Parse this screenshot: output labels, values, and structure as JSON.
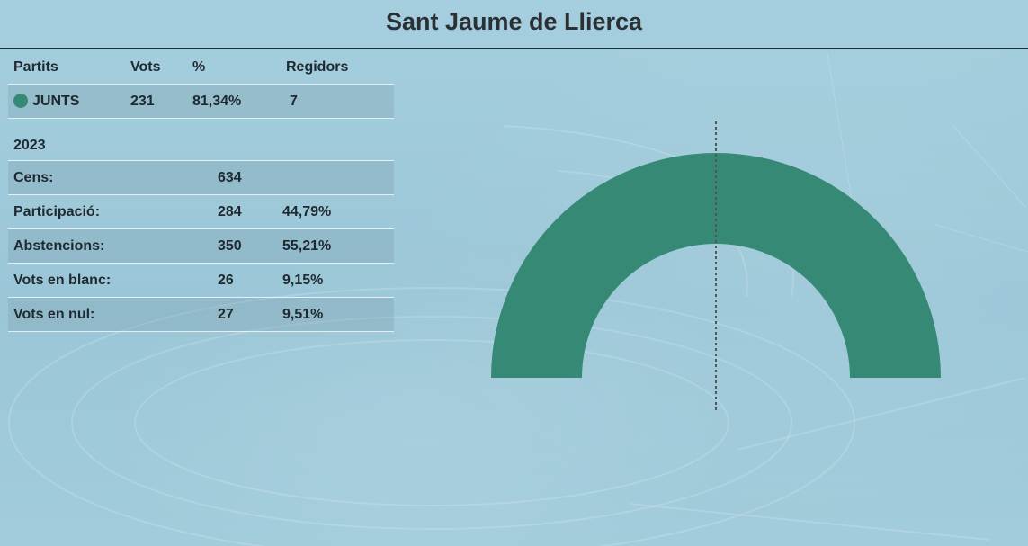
{
  "title": "Sant Jaume de Llierca",
  "results_table": {
    "headers": {
      "party": "Partits",
      "votes": "Vots",
      "pct": "%",
      "seats": "Regidors"
    },
    "rows": [
      {
        "party": "JUNTS",
        "votes": "231",
        "pct": "81,34%",
        "seats": "7",
        "color": "#368a75"
      }
    ]
  },
  "summary": {
    "year": "2023",
    "rows": [
      {
        "label": "Cens:",
        "value": "634",
        "pct": ""
      },
      {
        "label": "Participació:",
        "value": "284",
        "pct": "44,79%"
      },
      {
        "label": "Abstencions:",
        "value": "350",
        "pct": "55,21%"
      },
      {
        "label": "Vots en blanc:",
        "value": "26",
        "pct": "9,15%"
      },
      {
        "label": "Vots en nul:",
        "value": "27",
        "pct": "9,51%"
      }
    ]
  },
  "chart_data": {
    "type": "pie",
    "subtype": "semicircle-parliament",
    "total_seats": 7,
    "majority_line": true,
    "slices": [
      {
        "party": "JUNTS",
        "seats": 7,
        "color": "#368a75"
      }
    ]
  }
}
